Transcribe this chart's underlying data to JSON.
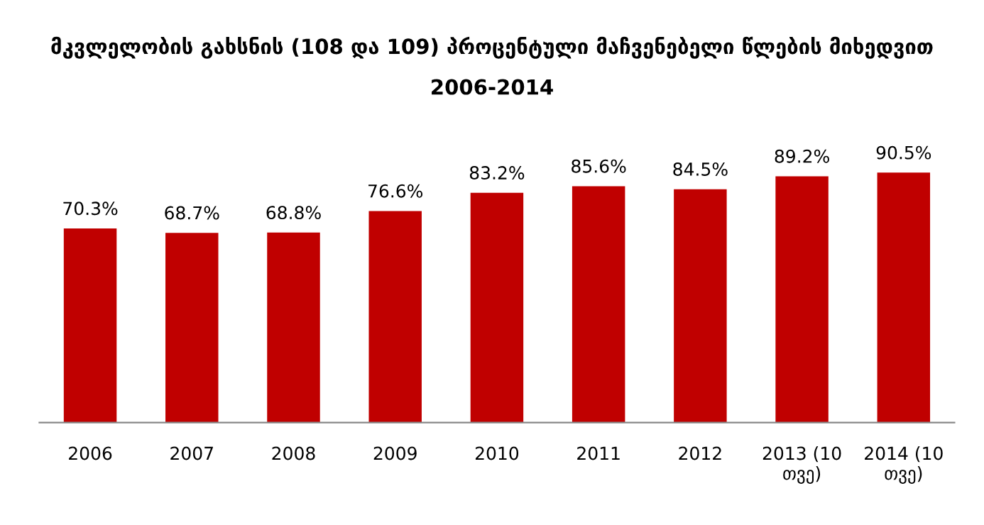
{
  "chart_data": {
    "type": "bar",
    "title": "მკვლელობის გახსნის (108 და 109) პროცენტული მაჩვენებელი წლების მიხედვით",
    "subtitle": "2006-2014",
    "categories": [
      "2006",
      "2007",
      "2008",
      "2009",
      "2010",
      "2011",
      "2012",
      "2013 (10 თვე)",
      "2014 (10 თვე)"
    ],
    "values": [
      70.3,
      68.7,
      68.8,
      76.6,
      83.2,
      85.6,
      84.5,
      89.2,
      90.5
    ],
    "value_labels": [
      "70.3%",
      "68.7%",
      "68.8%",
      "76.6%",
      "83.2%",
      "85.6%",
      "84.5%",
      "89.2%",
      "90.5%"
    ],
    "color": "#c00000",
    "tick_labels": "x",
    "grid": false,
    "legend": false
  }
}
